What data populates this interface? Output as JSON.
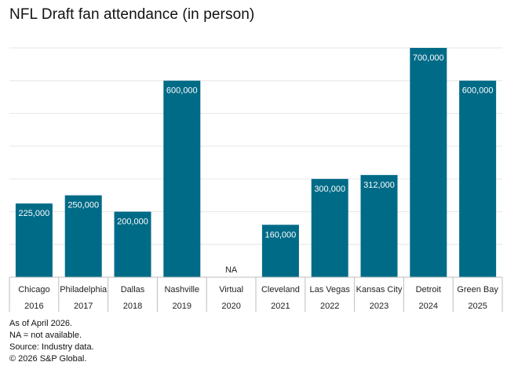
{
  "chart_data": {
    "type": "bar",
    "title": "NFL Draft fan attendance (in person)",
    "categories": [
      {
        "city": "Chicago",
        "year": "2016"
      },
      {
        "city": "Philadelphia",
        "year": "2017"
      },
      {
        "city": "Dallas",
        "year": "2018"
      },
      {
        "city": "Nashville",
        "year": "2019"
      },
      {
        "city": "Virtual",
        "year": "2020"
      },
      {
        "city": "Cleveland",
        "year": "2021"
      },
      {
        "city": "Las Vegas",
        "year": "2022"
      },
      {
        "city": "Kansas City",
        "year": "2023"
      },
      {
        "city": "Detroit",
        "year": "2024"
      },
      {
        "city": "Green Bay",
        "year": "2025"
      }
    ],
    "values": [
      225000,
      250000,
      200000,
      600000,
      null,
      160000,
      300000,
      312000,
      700000,
      600000
    ],
    "value_labels": [
      "225,000",
      "250,000",
      "200,000",
      "600,000",
      "NA",
      "160,000",
      "300,000",
      "312,000",
      "700,000",
      "600,000"
    ],
    "ylim": [
      0,
      700000
    ],
    "grid": true,
    "colors": {
      "bar": "#006b87",
      "grid": "#e6e6e6",
      "axis": "#bdbdbd"
    }
  },
  "notes": [
    "As of April 2026.",
    "NA = not available.",
    "Source: Industry data.",
    "© 2026 S&P Global."
  ]
}
